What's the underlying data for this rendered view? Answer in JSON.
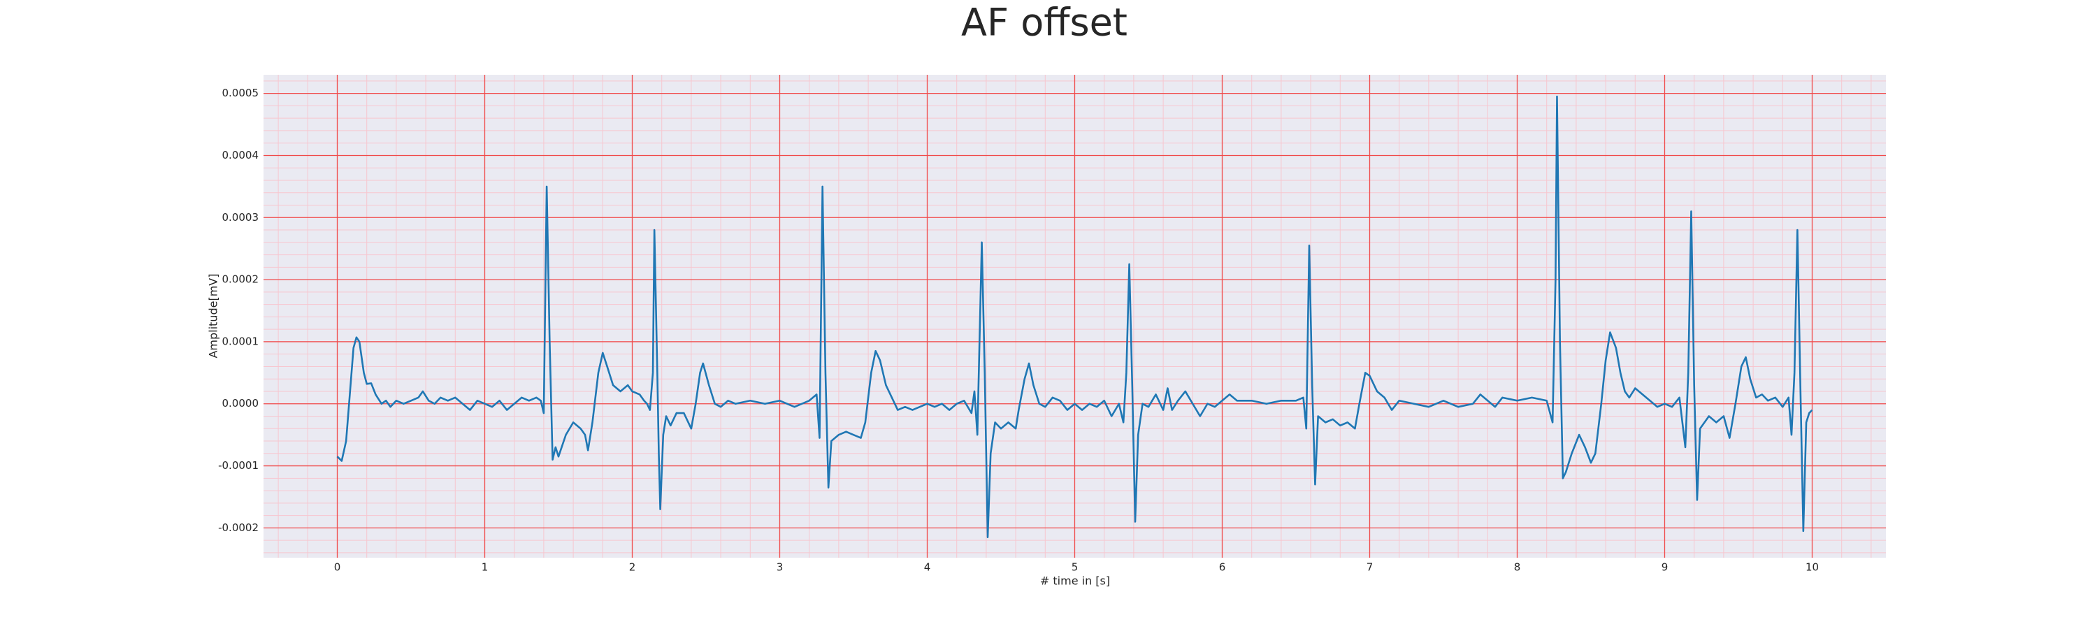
{
  "chart_data": {
    "type": "line",
    "title": "AF offset",
    "xlabel": "# time in [s]",
    "ylabel": "Amplitude[mV]",
    "x": [
      0,
      0.03,
      0.06,
      0.09,
      0.11,
      0.13,
      0.15,
      0.18,
      0.2,
      0.23,
      0.26,
      0.3,
      0.33,
      0.36,
      0.4,
      0.45,
      0.5,
      0.55,
      0.58,
      0.62,
      0.66,
      0.7,
      0.75,
      0.8,
      0.85,
      0.9,
      0.95,
      1.0,
      1.05,
      1.1,
      1.15,
      1.2,
      1.25,
      1.3,
      1.35,
      1.38,
      1.4,
      1.42,
      1.44,
      1.46,
      1.48,
      1.5,
      1.55,
      1.6,
      1.65,
      1.68,
      1.7,
      1.73,
      1.77,
      1.8,
      1.83,
      1.87,
      1.92,
      1.97,
      2.0,
      2.05,
      2.08,
      2.1,
      2.12,
      2.14,
      2.15,
      2.17,
      2.18,
      2.19,
      2.21,
      2.23,
      2.26,
      2.3,
      2.35,
      2.4,
      2.43,
      2.46,
      2.48,
      2.52,
      2.56,
      2.6,
      2.65,
      2.7,
      2.8,
      2.9,
      3.0,
      3.1,
      3.2,
      3.25,
      3.27,
      3.29,
      3.31,
      3.33,
      3.35,
      3.4,
      3.45,
      3.5,
      3.55,
      3.58,
      3.62,
      3.65,
      3.68,
      3.72,
      3.76,
      3.8,
      3.85,
      3.9,
      4.0,
      4.05,
      4.1,
      4.15,
      4.2,
      4.25,
      4.3,
      4.32,
      4.34,
      4.37,
      4.39,
      4.41,
      4.43,
      4.46,
      4.5,
      4.55,
      4.6,
      4.62,
      4.66,
      4.69,
      4.72,
      4.76,
      4.8,
      4.85,
      4.9,
      4.95,
      5.0,
      5.05,
      5.1,
      5.15,
      5.2,
      5.25,
      5.3,
      5.33,
      5.35,
      5.37,
      5.39,
      5.41,
      5.43,
      5.46,
      5.5,
      5.55,
      5.6,
      5.63,
      5.66,
      5.7,
      5.75,
      5.8,
      5.85,
      5.9,
      5.95,
      6.0,
      6.05,
      6.1,
      6.2,
      6.3,
      6.4,
      6.5,
      6.55,
      6.57,
      6.59,
      6.61,
      6.63,
      6.65,
      6.7,
      6.75,
      6.8,
      6.85,
      6.9,
      6.93,
      6.97,
      7.0,
      7.05,
      7.1,
      7.15,
      7.2,
      7.3,
      7.4,
      7.5,
      7.6,
      7.7,
      7.75,
      7.8,
      7.85,
      7.9,
      8.0,
      8.1,
      8.2,
      8.24,
      8.26,
      8.27,
      8.29,
      8.31,
      8.33,
      8.37,
      8.42,
      8.46,
      8.5,
      8.53,
      8.57,
      8.6,
      8.63,
      8.67,
      8.7,
      8.73,
      8.76,
      8.8,
      8.85,
      8.9,
      8.95,
      9.0,
      9.05,
      9.1,
      9.14,
      9.16,
      9.18,
      9.2,
      9.22,
      9.24,
      9.27,
      9.3,
      9.35,
      9.4,
      9.44,
      9.48,
      9.52,
      9.55,
      9.58,
      9.62,
      9.66,
      9.7,
      9.75,
      9.8,
      9.84,
      9.86,
      9.88,
      9.9,
      9.92,
      9.94,
      9.96,
      9.98,
      10.0
    ],
    "series": [
      {
        "color": "#1f77b4",
        "values": [
          -8.5e-05,
          -9.2e-05,
          -6e-05,
          3e-05,
          9e-05,
          0.000107,
          0.0001,
          5e-05,
          3.2e-05,
          3.3e-05,
          1.5e-05,
          0,
          5e-06,
          -5e-06,
          5e-06,
          0,
          5e-06,
          1e-05,
          2e-05,
          5e-06,
          0,
          1e-05,
          5e-06,
          1e-05,
          0,
          -1e-05,
          5e-06,
          0,
          -5e-06,
          5e-06,
          -1e-05,
          0,
          1e-05,
          5e-06,
          1e-05,
          5e-06,
          -1.5e-05,
          0.00035,
          0.0001,
          -9e-05,
          -7e-05,
          -8.5e-05,
          -5e-05,
          -3e-05,
          -4e-05,
          -5e-05,
          -7.5e-05,
          -3e-05,
          5e-05,
          8.2e-05,
          6e-05,
          3e-05,
          2e-05,
          3e-05,
          2e-05,
          1.5e-05,
          5e-06,
          0,
          -1e-05,
          5e-05,
          0.00028,
          5e-05,
          -8e-05,
          -0.00017,
          -5e-05,
          -2e-05,
          -3.5e-05,
          -1.5e-05,
          -1.5e-05,
          -4e-05,
          0,
          5e-05,
          6.5e-05,
          3e-05,
          0,
          -5e-06,
          5e-06,
          0,
          5e-06,
          0,
          5e-06,
          -5e-06,
          5e-06,
          1.5e-05,
          -5.5e-05,
          0.00035,
          5e-05,
          -0.000135,
          -6e-05,
          -5e-05,
          -4.5e-05,
          -5e-05,
          -5.5e-05,
          -3e-05,
          5e-05,
          8.5e-05,
          7e-05,
          3e-05,
          1e-05,
          -1e-05,
          -5e-06,
          -1e-05,
          0,
          -5e-06,
          0,
          -1e-05,
          0,
          5e-06,
          -1.5e-05,
          2e-05,
          -5e-05,
          0.00026,
          5e-05,
          -0.000215,
          -8e-05,
          -3e-05,
          -4e-05,
          -3e-05,
          -4e-05,
          -1e-05,
          4e-05,
          6.5e-05,
          3e-05,
          0,
          -5e-06,
          1e-05,
          5e-06,
          -1e-05,
          0,
          -1e-05,
          0,
          -5e-06,
          5e-06,
          -2e-05,
          0,
          -3e-05,
          5e-05,
          0.000225,
          3e-05,
          -0.00019,
          -5e-05,
          0,
          -5e-06,
          1.5e-05,
          -1e-05,
          2.5e-05,
          -1e-05,
          5e-06,
          2e-05,
          0,
          -2e-05,
          0,
          -5e-06,
          5e-06,
          1.5e-05,
          5e-06,
          5e-06,
          0,
          5e-06,
          5e-06,
          1e-05,
          -4e-05,
          0.000255,
          3e-05,
          -0.00013,
          -2e-05,
          -3e-05,
          -2.5e-05,
          -3.5e-05,
          -3e-05,
          -4e-05,
          0,
          5e-05,
          4.5e-05,
          2e-05,
          1e-05,
          -1e-05,
          5e-06,
          0,
          -5e-06,
          5e-06,
          -5e-06,
          0,
          1.5e-05,
          5e-06,
          -5e-06,
          1e-05,
          5e-06,
          1e-05,
          5e-06,
          -3e-05,
          0.0002,
          0.000495,
          0.0001,
          -0.00012,
          -0.00011,
          -8e-05,
          -5e-05,
          -7e-05,
          -9.5e-05,
          -8e-05,
          0,
          7e-05,
          0.000115,
          9e-05,
          5e-05,
          2e-05,
          1e-05,
          2.5e-05,
          1.5e-05,
          5e-06,
          -5e-06,
          0,
          -5e-06,
          1e-05,
          -7e-05,
          5e-05,
          0.00031,
          3e-05,
          -0.000155,
          -4e-05,
          -3e-05,
          -2e-05,
          -3e-05,
          -2e-05,
          -5.5e-05,
          0,
          6e-05,
          7.5e-05,
          4e-05,
          1e-05,
          1.5e-05,
          5e-06,
          1e-05,
          -5e-06,
          1e-05,
          -5e-05,
          5e-05,
          0.00028,
          3e-05,
          -0.000205,
          -3e-05,
          -1.5e-05,
          -1e-05
        ]
      }
    ],
    "xlim": [
      -0.5,
      10.5
    ],
    "ylim": [
      -0.000248,
      0.00053
    ],
    "xticks": [
      0,
      1,
      2,
      3,
      4,
      5,
      6,
      7,
      8,
      9,
      10
    ],
    "yticks": [
      -0.0002,
      -0.0001,
      {
        "value": 0,
        "label": "0.0000"
      },
      0.0001,
      0.0002,
      0.0003,
      0.0004,
      0.0005
    ],
    "grid": true,
    "grid_color": "#f04a4a",
    "background": "#eaeaf2",
    "minor_grid": {
      "x_step": 0.2,
      "y_step": 2e-05,
      "color": "#f7c6cf"
    }
  }
}
